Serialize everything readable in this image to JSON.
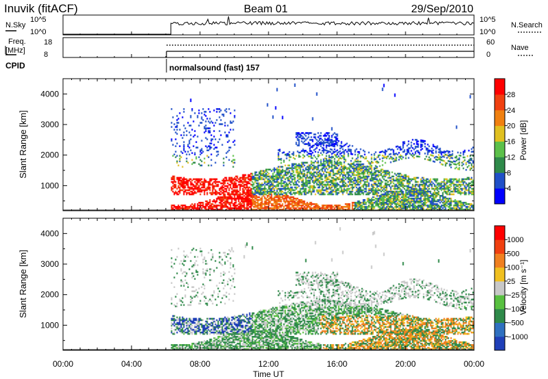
{
  "header": {
    "station": "Inuvik (fitACF)",
    "beam": "Beam 01",
    "date": "29/Sep/2010"
  },
  "strip_labels": {
    "nsky": "N.Sky",
    "freq_line1": "Freq.",
    "freq_line2": "[MHz]",
    "cpid": "CPID",
    "nsearch": "N.Search",
    "nave": "Nave"
  },
  "strip_ticks": {
    "nsky_top": "10^5",
    "nsky_bottom": "10^0",
    "freq_top": "18",
    "freq_bottom": "8",
    "nave_top": "60",
    "nave_bottom": "0"
  },
  "cpid_text": "normalsound (fast) 157",
  "chart_data": [
    {
      "type": "heatmap",
      "title": "",
      "ylabel": "Slant Range [km]",
      "xlabel": "",
      "x_ticks": [
        "00:00",
        "04:00",
        "08:00",
        "12:00",
        "16:00",
        "20:00",
        "00:00"
      ],
      "x_range_hours": [
        0,
        24
      ],
      "y_ticks": [
        "1000",
        "2000",
        "3000",
        "4000"
      ],
      "y_tick_values": [
        1000,
        2000,
        3000,
        4000
      ],
      "ylim": [
        180,
        4500
      ],
      "data_start_hour": 6.3,
      "colorbar": {
        "label": "Power [dB]",
        "ticks": [
          "28",
          "24",
          "20",
          "16",
          "12",
          "8",
          "4"
        ],
        "range": [
          0,
          32
        ],
        "colors": [
          "#0000ff",
          "#2050c8",
          "#2f8a4a",
          "#5cc04a",
          "#e0c020",
          "#f08010",
          "#f04010",
          "#ff0000"
        ]
      }
    },
    {
      "type": "heatmap",
      "title": "",
      "ylabel": "Slant Range [km]",
      "xlabel": "Time UT",
      "x_ticks": [
        "00:00",
        "04:00",
        "08:00",
        "12:00",
        "16:00",
        "20:00",
        "00:00"
      ],
      "x_range_hours": [
        0,
        24
      ],
      "y_ticks": [
        "1000",
        "2000",
        "3000",
        "4000"
      ],
      "y_tick_values": [
        1000,
        2000,
        3000,
        4000
      ],
      "ylim": [
        180,
        4500
      ],
      "data_start_hour": 6.3,
      "colorbar": {
        "label": "Velocity [m s⁻¹]",
        "ticks": [
          "1000",
          "500",
          "100",
          "25",
          "−25",
          "−100",
          "−500",
          "−1000"
        ],
        "colors": [
          "#1f3fb8",
          "#2f70c0",
          "#2f8a4a",
          "#58c040",
          "#c8c8c8",
          "#f0c020",
          "#f08020",
          "#f04010",
          "#ff0000"
        ]
      }
    }
  ]
}
